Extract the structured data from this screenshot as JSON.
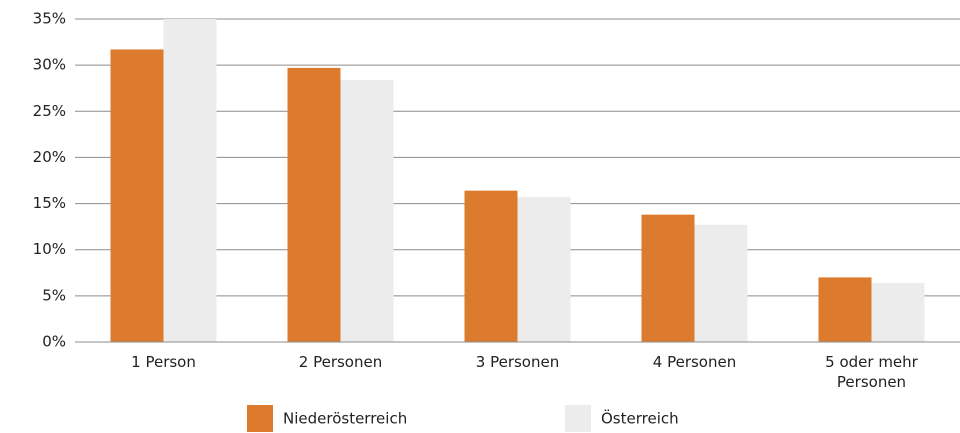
{
  "chart_data": {
    "type": "bar",
    "categories": [
      "1 Person",
      "2 Personen",
      "3 Personen",
      "4 Personen",
      "5 oder mehr Personen"
    ],
    "series": [
      {
        "name": "Niederösterreich",
        "color": "#dc7b2d",
        "values": [
          31.7,
          29.7,
          16.4,
          13.8,
          7.0
        ]
      },
      {
        "name": "Österreich",
        "color": "#ececec",
        "values": [
          35.0,
          28.4,
          15.7,
          12.7,
          6.4
        ]
      }
    ],
    "ylim": [
      0,
      35
    ],
    "yticks": [
      {
        "value": 0,
        "label": "0%"
      },
      {
        "value": 5,
        "label": "5%"
      },
      {
        "value": 10,
        "label": "10%"
      },
      {
        "value": 15,
        "label": "15%"
      },
      {
        "value": 20,
        "label": "20%"
      },
      {
        "value": 25,
        "label": "25%"
      },
      {
        "value": 30,
        "label": "30%"
      },
      {
        "value": 35,
        "label": "35%"
      }
    ],
    "grid": true,
    "legend": "bottom"
  }
}
